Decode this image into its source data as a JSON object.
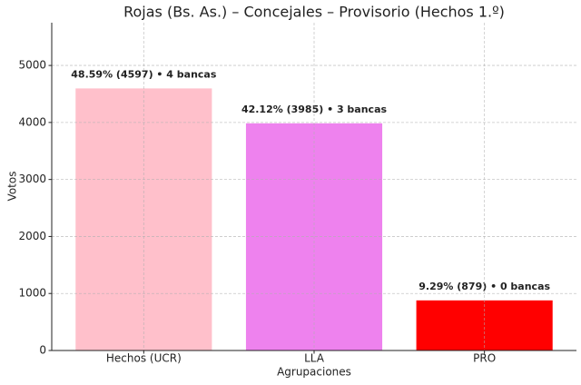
{
  "chart_data": {
    "type": "bar",
    "title": "Rojas (Bs. As.) – Concejales – Provisorio (Hechos 1.º)",
    "x_label": "Agrupaciones",
    "y_label": "Votos",
    "categories": [
      "Hechos (UCR)",
      "LLA",
      "PRO"
    ],
    "values": [
      4597,
      3985,
      879
    ],
    "value_labels": [
      "48.59%  (4597)  •  4 bancas",
      "42.12%  (3985)  •  3 bancas",
      "9.29%  (879)  •  0 bancas"
    ],
    "colors": [
      "#ffc0cb",
      "#ee82ee",
      "#ff0000"
    ],
    "ylim": [
      0,
      5750
    ],
    "yticks": [
      0,
      1000,
      2000,
      3000,
      4000,
      5000
    ],
    "grid": true
  }
}
